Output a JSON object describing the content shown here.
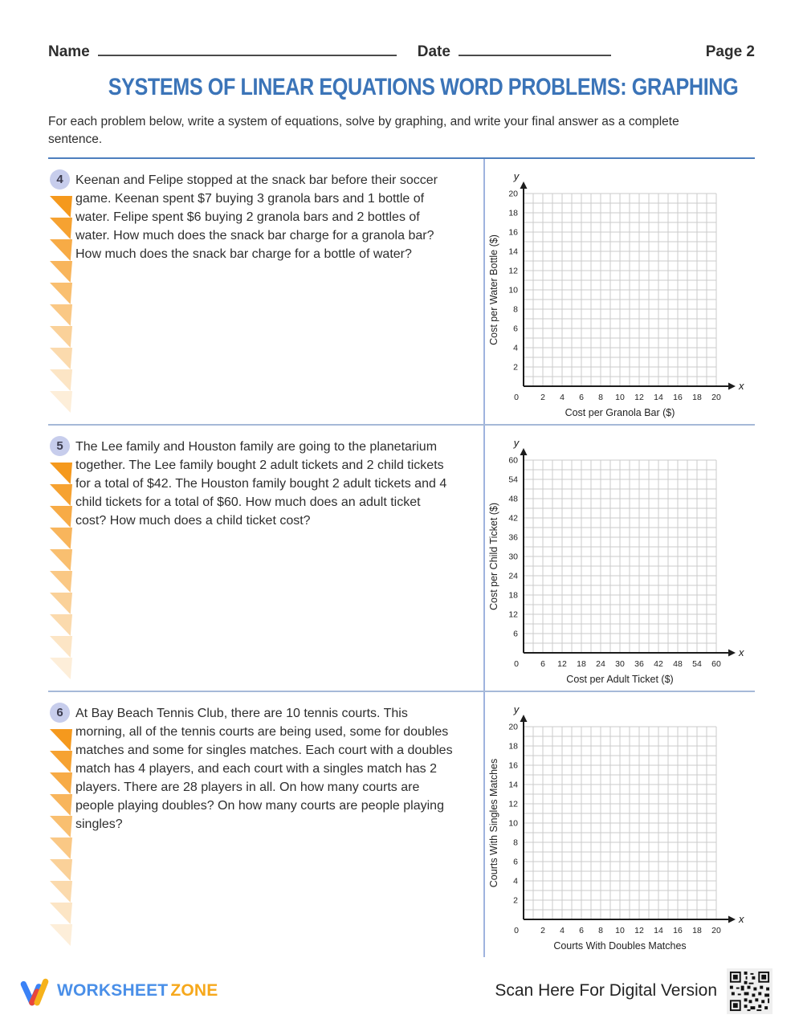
{
  "header": {
    "name_label": "Name",
    "date_label": "Date",
    "page_label": "Page 2"
  },
  "title": "SYSTEMS OF LINEAR EQUATIONS WORD PROBLEMS: GRAPHING",
  "instructions": "For each problem below, write a system of equations, solve by graphing, and write your final answer as a complete sentence.",
  "problems": [
    {
      "number": "4",
      "text": "Keenan and Felipe stopped at the snack bar before their soccer game. Keenan spent $7 buying 3 granola bars and 1 bottle of water. Felipe spent $6 buying 2 granola bars and 2 bottles of water. How much does the snack bar charge for a granola bar? How much does the snack bar charge for a bottle of water?",
      "graph": {
        "y_title": "Cost per Water Bottle ($)",
        "x_title": "Cost per Granola Bar ($)",
        "axis_y_letter": "y",
        "axis_x_letter": "x",
        "grid_cells": 20,
        "x_tick_labels": [
          "0",
          "2",
          "4",
          "6",
          "8",
          "10",
          "12",
          "14",
          "16",
          "18",
          "20"
        ],
        "y_tick_labels": [
          "2",
          "4",
          "6",
          "8",
          "10",
          "12",
          "14",
          "16",
          "18",
          "20"
        ]
      }
    },
    {
      "number": "5",
      "text": "The Lee family and Houston family are going to the planetarium together. The Lee family bought 2 adult tickets and 2 child tickets for a total of $42. The Houston family bought 2 adult tickets and 4 child tickets for a total of $60. How much does an adult ticket cost? How much does a child ticket cost?",
      "graph": {
        "y_title": "Cost per Child Ticket ($)",
        "x_title": "Cost per Adult Ticket ($)",
        "axis_y_letter": "y",
        "axis_x_letter": "x",
        "grid_cells": 20,
        "x_tick_labels": [
          "0",
          "6",
          "12",
          "18",
          "24",
          "30",
          "36",
          "42",
          "48",
          "54",
          "60"
        ],
        "y_tick_labels": [
          "6",
          "12",
          "18",
          "24",
          "30",
          "36",
          "42",
          "48",
          "54",
          "60"
        ]
      }
    },
    {
      "number": "6",
      "text": "At Bay Beach Tennis Club, there are 10 tennis courts. This morning, all of the tennis courts are being used, some for doubles matches and some for singles matches. Each court with a doubles match has 4 players, and each court with a singles match has 2 players. There are 28 players in all. On how many courts are people playing doubles? On how many courts are people playing singles?",
      "graph": {
        "y_title": "Courts With Singles Matches",
        "x_title": "Courts With Doubles Matches",
        "axis_y_letter": "y",
        "axis_x_letter": "x",
        "grid_cells": 20,
        "x_tick_labels": [
          "0",
          "2",
          "4",
          "6",
          "8",
          "10",
          "12",
          "14",
          "16",
          "18",
          "20"
        ],
        "y_tick_labels": [
          "2",
          "4",
          "6",
          "8",
          "10",
          "12",
          "14",
          "16",
          "18",
          "20"
        ]
      }
    }
  ],
  "footer": {
    "brand_word1": "WORKSHEET",
    "brand_word2": "ZONE",
    "scan_text": "Scan Here For Digital Version"
  },
  "decoration": {
    "triangles_per_problem": 10
  },
  "colors": {
    "accent": "#3b74b8",
    "rule_top": "#4d7fbe",
    "rule_section": "#a6b9d8",
    "divider": "#9fb3de",
    "tri": "#f5991d",
    "badge_bg": "#c7cdec",
    "brand_blue": "#4a8fe8",
    "brand_orange": "#f6a81c",
    "grid": "#cbcbcb",
    "axis": "#1d1d1d",
    "ink": "#303030"
  }
}
